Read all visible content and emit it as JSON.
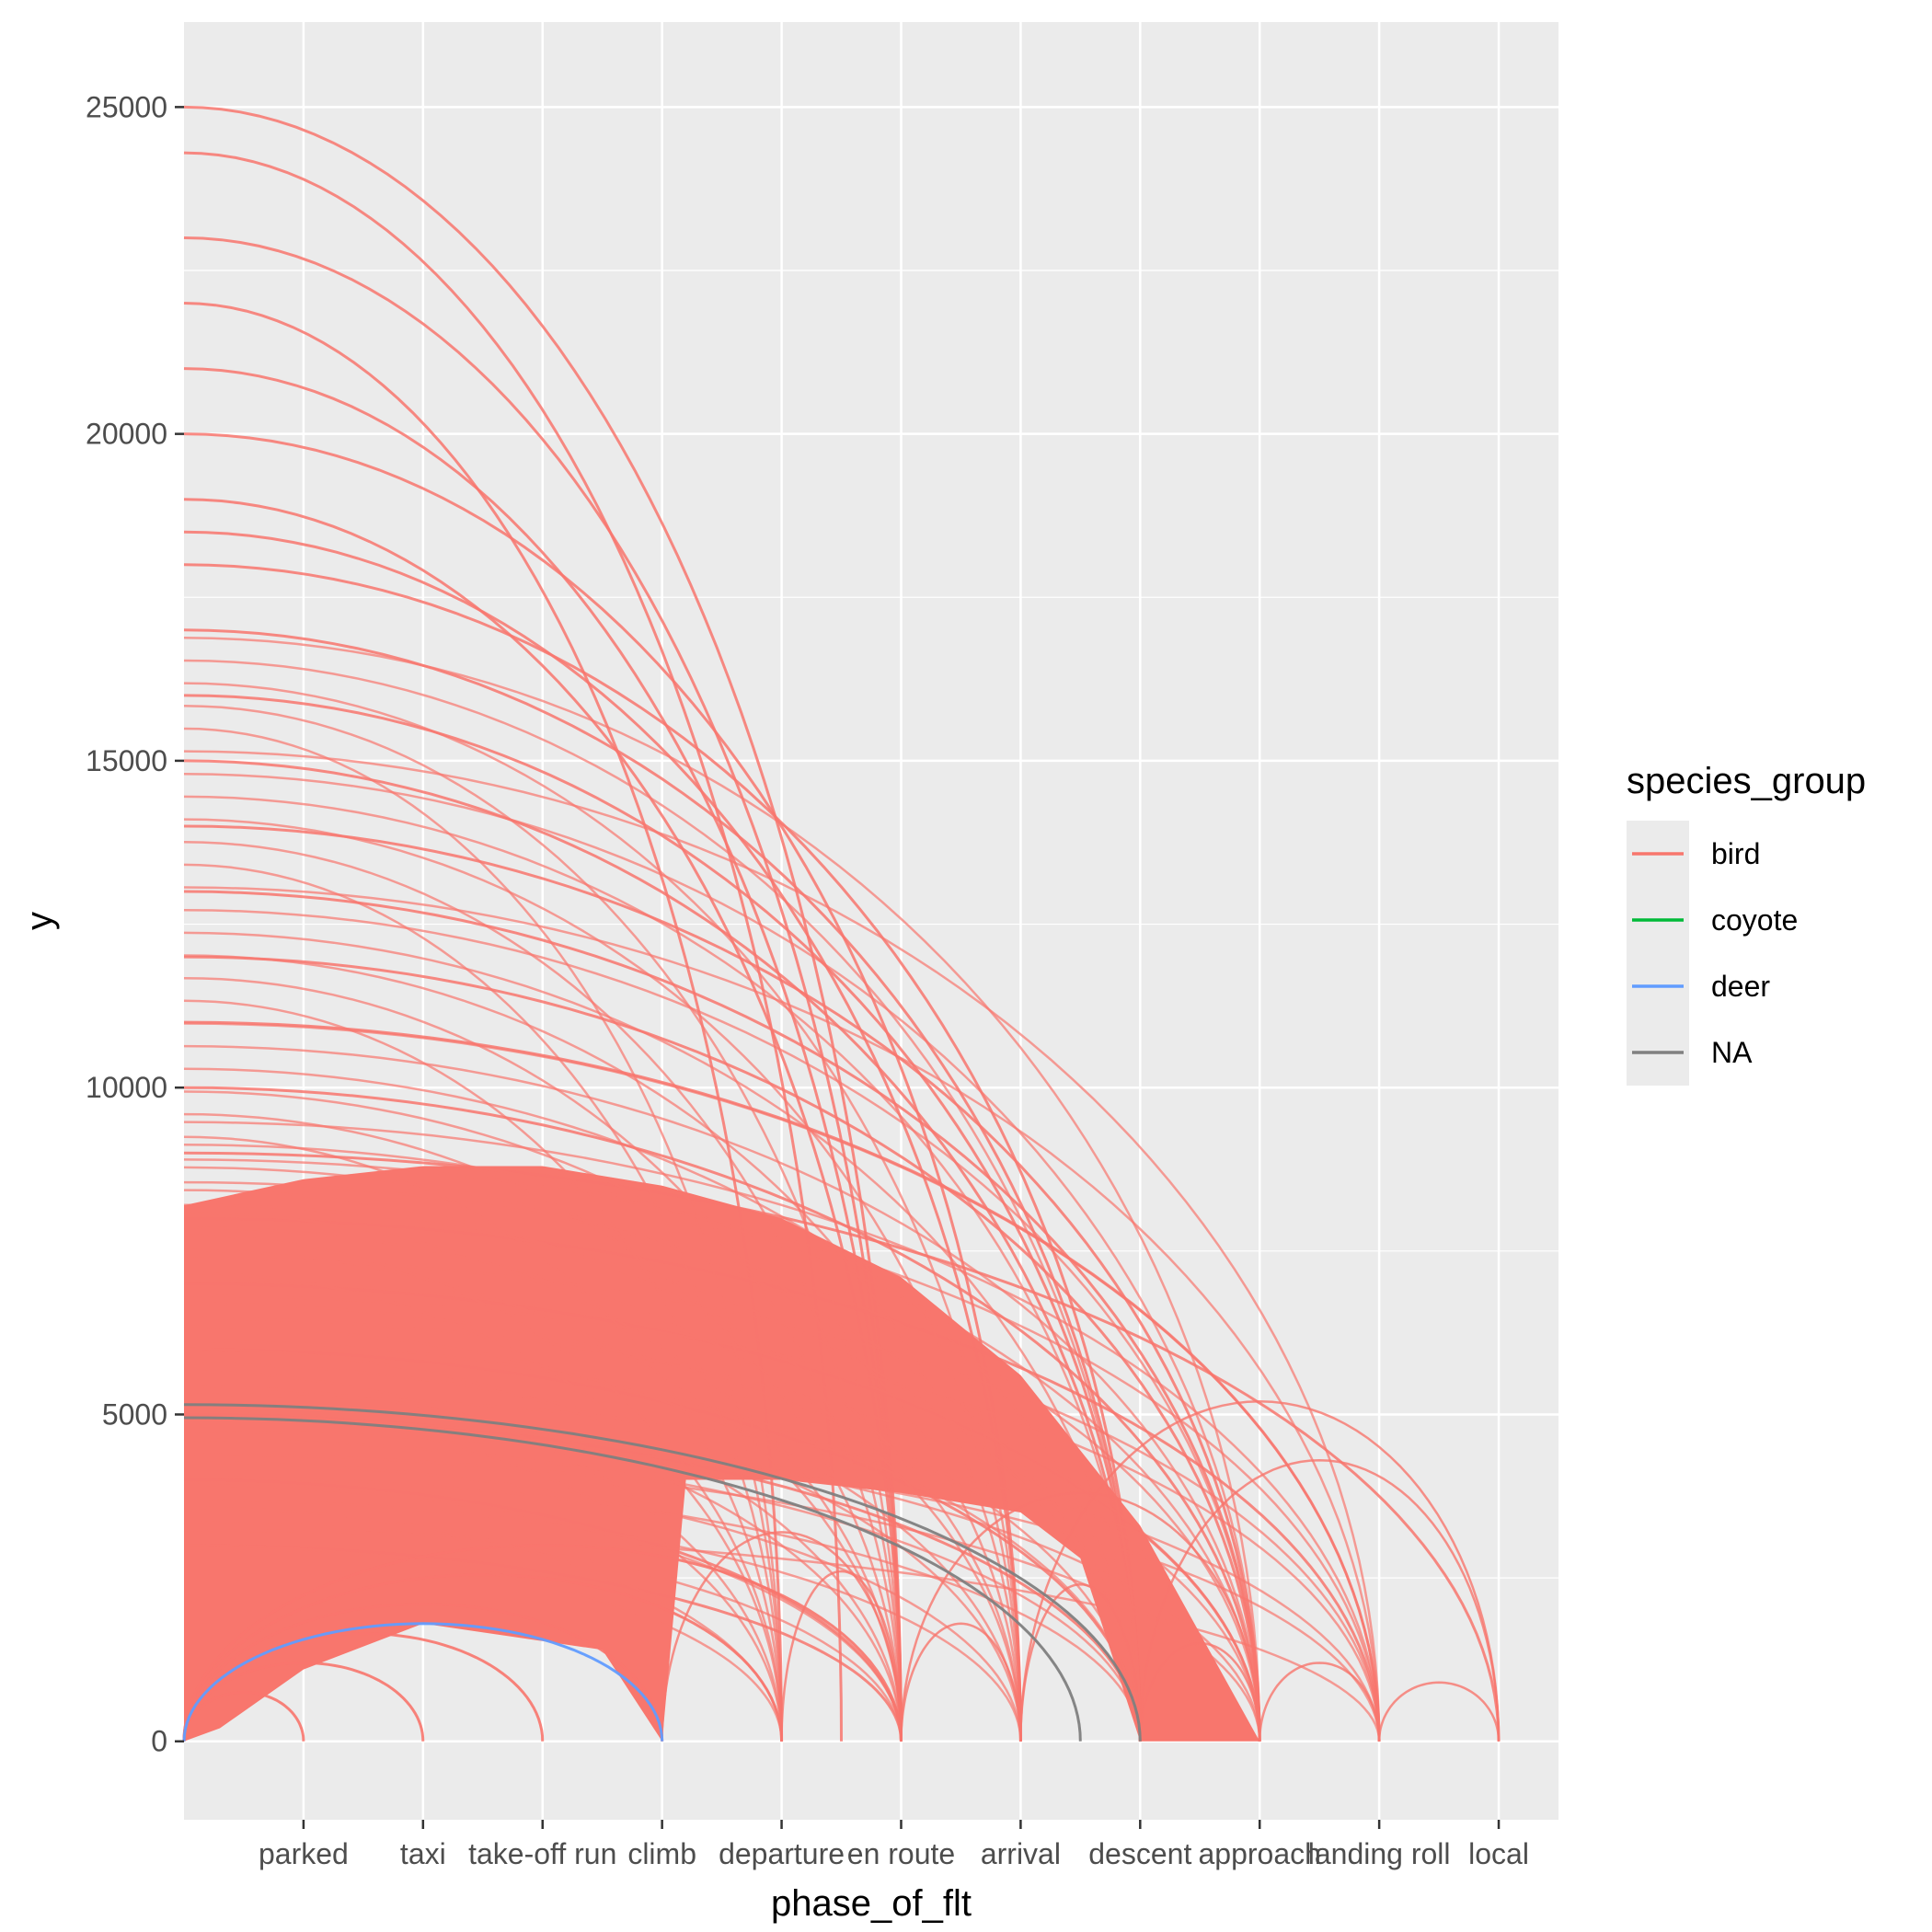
{
  "chart_data": {
    "type": "arc",
    "xlabel": "phase_of_flt",
    "ylabel": "y",
    "categories": [
      "parked",
      "taxi",
      "take-off run",
      "climb",
      "departure",
      "en route",
      "arrival",
      "descent",
      "approach",
      "landing roll",
      "local"
    ],
    "x_range": [
      0,
      11.5
    ],
    "ylim": [
      -1200,
      26300
    ],
    "y_ticks": [
      0,
      5000,
      10000,
      15000,
      20000,
      25000
    ],
    "y_tick_labels": [
      "0",
      "5000",
      "10000",
      "15000",
      "20000",
      "25000"
    ],
    "grid": true,
    "legend": {
      "title": "species_group",
      "position": "right",
      "entries": [
        {
          "label": "bird",
          "color": "#F8766D"
        },
        {
          "label": "coyote",
          "color": "#00BA38"
        },
        {
          "label": "deer",
          "color": "#619CFF"
        },
        {
          "label": "NA",
          "color": "#808080"
        }
      ]
    },
    "colors": {
      "bird": "#F8766D",
      "coyote": "#00BA38",
      "deer": "#619CFF",
      "NA": "#808080",
      "panel": "#EBEBEB",
      "grid": "#FFFFFF"
    },
    "arcs_highlight": [
      {
        "group": "NA",
        "start_y": 5150,
        "end_x": 8
      },
      {
        "group": "NA",
        "start_y": 4950,
        "end_x": 7.5
      },
      {
        "group": "deer",
        "start_y": 0,
        "end_x": 4
      }
    ],
    "arcs_bird_endpoints": [
      {
        "start_y": 25000,
        "end_x": 6
      },
      {
        "start_y": 24300,
        "end_x": 5.5
      },
      {
        "start_y": 23000,
        "end_x": 6
      },
      {
        "start_y": 22000,
        "end_x": 5
      },
      {
        "start_y": 21000,
        "end_x": 6
      },
      {
        "start_y": 20000,
        "end_x": 7
      },
      {
        "start_y": 19000,
        "end_x": 6
      },
      {
        "start_y": 18500,
        "end_x": 7
      },
      {
        "start_y": 18000,
        "end_x": 8
      },
      {
        "start_y": 17000,
        "end_x": 8
      },
      {
        "start_y": 16000,
        "end_x": 8
      },
      {
        "start_y": 15000,
        "end_x": 8
      },
      {
        "start_y": 14000,
        "end_x": 9
      },
      {
        "start_y": 13000,
        "end_x": 9
      },
      {
        "start_y": 12000,
        "end_x": 9
      },
      {
        "start_y": 11000,
        "end_x": 10
      },
      {
        "start_y": 10000,
        "end_x": 9
      },
      {
        "start_y": 9000,
        "end_x": 11
      },
      {
        "start_y": 8000,
        "end_x": 10
      },
      {
        "start_y": 7000,
        "end_x": 9
      },
      {
        "start_y": 6000,
        "end_x": 8
      },
      {
        "start_y": 5000,
        "end_x": 8
      },
      {
        "start_y": 4000,
        "end_x": 6
      },
      {
        "start_y": 3000,
        "end_x": 6
      },
      {
        "start_y": 0,
        "end_x": 1
      },
      {
        "start_y": 0,
        "end_x": 2
      },
      {
        "start_y": 0,
        "end_x": 3
      },
      {
        "start_y": 0,
        "end_x": 4
      },
      {
        "start_y": 0,
        "end_x": 5
      },
      {
        "start_y": 0,
        "end_x": 6
      }
    ]
  }
}
